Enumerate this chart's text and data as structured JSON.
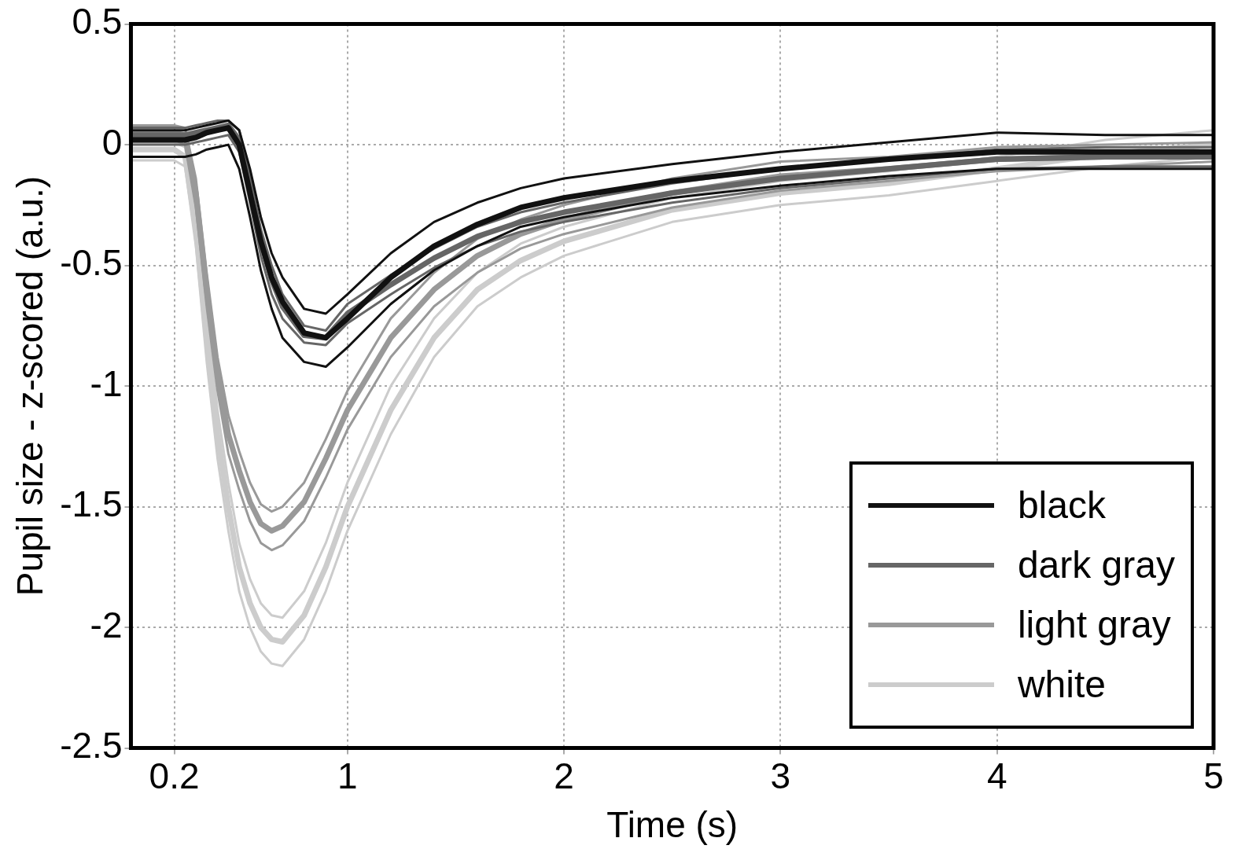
{
  "chart_data": {
    "type": "line",
    "xlabel": "Time (s)",
    "ylabel": "Pupil size - z-scored (a.u.)",
    "xlim": [
      0,
      5
    ],
    "xticks": [
      0.2,
      1,
      2,
      3,
      4,
      5
    ],
    "ylim": [
      -2.5,
      0.5
    ],
    "yticks": [
      -2.5,
      -2,
      -1.5,
      -1,
      -0.5,
      0,
      0.5
    ],
    "x": [
      0,
      0.2,
      0.25,
      0.3,
      0.35,
      0.4,
      0.45,
      0.5,
      0.55,
      0.6,
      0.65,
      0.7,
      0.8,
      0.9,
      1.0,
      1.2,
      1.4,
      1.6,
      1.8,
      2.0,
      2.5,
      3,
      3.5,
      4,
      4.5,
      5
    ],
    "grid": true,
    "legend": "bottom right",
    "line_style": "solid",
    "marker": "none",
    "series": [
      {
        "name": "black",
        "color": "#111111",
        "values": [
          0.02,
          0.02,
          0.02,
          0.03,
          0.05,
          0.06,
          0.07,
          0.0,
          -0.2,
          -0.4,
          -0.55,
          -0.65,
          -0.78,
          -0.8,
          -0.72,
          -0.55,
          -0.42,
          -0.33,
          -0.26,
          -0.22,
          -0.15,
          -0.1,
          -0.06,
          -0.03,
          -0.03,
          -0.03
        ]
      },
      {
        "color": "#111111",
        "values": [
          -0.05,
          -0.05,
          -0.05,
          -0.04,
          -0.02,
          -0.01,
          0.0,
          -0.1,
          -0.3,
          -0.52,
          -0.68,
          -0.8,
          -0.9,
          -0.92,
          -0.84,
          -0.66,
          -0.52,
          -0.42,
          -0.34,
          -0.3,
          -0.22,
          -0.17,
          -0.13,
          -0.1,
          -0.1,
          -0.1
        ]
      },
      {
        "color": "#111111",
        "values": [
          0.06,
          0.06,
          0.06,
          0.07,
          0.08,
          0.09,
          0.1,
          0.06,
          -0.1,
          -0.3,
          -0.45,
          -0.55,
          -0.68,
          -0.7,
          -0.62,
          -0.45,
          -0.32,
          -0.24,
          -0.18,
          -0.14,
          -0.08,
          -0.03,
          0.01,
          0.05,
          0.04,
          0.04
        ]
      },
      {
        "name": "dark gray",
        "color": "#666666",
        "values": [
          0.04,
          0.04,
          0.04,
          0.05,
          0.06,
          0.07,
          0.08,
          0.02,
          -0.18,
          -0.4,
          -0.56,
          -0.67,
          -0.79,
          -0.8,
          -0.7,
          -0.58,
          -0.47,
          -0.38,
          -0.32,
          -0.28,
          -0.2,
          -0.14,
          -0.1,
          -0.06,
          -0.05,
          -0.05
        ]
      },
      {
        "color": "#666666",
        "values": [
          0.0,
          0.0,
          0.0,
          0.01,
          0.02,
          0.03,
          0.04,
          -0.03,
          -0.24,
          -0.46,
          -0.62,
          -0.72,
          -0.82,
          -0.83,
          -0.74,
          -0.62,
          -0.51,
          -0.42,
          -0.36,
          -0.32,
          -0.24,
          -0.18,
          -0.14,
          -0.1,
          -0.09,
          -0.09
        ]
      },
      {
        "color": "#666666",
        "values": [
          0.07,
          0.07,
          0.07,
          0.08,
          0.09,
          0.1,
          0.1,
          0.06,
          -0.13,
          -0.35,
          -0.5,
          -0.62,
          -0.75,
          -0.77,
          -0.66,
          -0.54,
          -0.43,
          -0.34,
          -0.28,
          -0.24,
          -0.16,
          -0.1,
          -0.06,
          -0.02,
          -0.01,
          -0.01
        ]
      },
      {
        "name": "light gray",
        "color": "#999999",
        "values": [
          0.05,
          0.05,
          0.04,
          -0.2,
          -0.6,
          -0.95,
          -1.2,
          -1.35,
          -1.48,
          -1.57,
          -1.6,
          -1.58,
          -1.48,
          -1.3,
          -1.1,
          -0.8,
          -0.6,
          -0.46,
          -0.37,
          -0.31,
          -0.2,
          -0.13,
          -0.1,
          -0.06,
          -0.05,
          -0.03
        ]
      },
      {
        "color": "#999999",
        "values": [
          0.02,
          0.02,
          0.0,
          -0.26,
          -0.67,
          -1.02,
          -1.28,
          -1.43,
          -1.56,
          -1.65,
          -1.68,
          -1.66,
          -1.56,
          -1.38,
          -1.18,
          -0.88,
          -0.67,
          -0.53,
          -0.43,
          -0.37,
          -0.26,
          -0.19,
          -0.15,
          -0.11,
          -0.09,
          -0.07
        ]
      },
      {
        "color": "#999999",
        "values": [
          0.08,
          0.08,
          0.07,
          -0.14,
          -0.53,
          -0.88,
          -1.12,
          -1.27,
          -1.4,
          -1.49,
          -1.52,
          -1.5,
          -1.4,
          -1.22,
          -1.02,
          -0.72,
          -0.53,
          -0.39,
          -0.31,
          -0.25,
          -0.14,
          -0.07,
          -0.05,
          -0.01,
          0.0,
          0.01
        ]
      },
      {
        "name": "white",
        "color": "#cccccc",
        "values": [
          -0.02,
          -0.02,
          -0.05,
          -0.35,
          -0.8,
          -1.2,
          -1.5,
          -1.75,
          -1.9,
          -2.0,
          -2.05,
          -2.06,
          -1.95,
          -1.75,
          -1.5,
          -1.1,
          -0.8,
          -0.6,
          -0.48,
          -0.4,
          -0.27,
          -0.2,
          -0.16,
          -0.1,
          -0.04,
          0.0
        ]
      },
      {
        "color": "#cccccc",
        "values": [
          -0.065,
          -0.065,
          -0.09,
          -0.42,
          -0.9,
          -1.3,
          -1.6,
          -1.85,
          -2.0,
          -2.1,
          -2.15,
          -2.16,
          -2.05,
          -1.85,
          -1.6,
          -1.2,
          -0.88,
          -0.67,
          -0.55,
          -0.46,
          -0.32,
          -0.25,
          -0.21,
          -0.15,
          -0.09,
          -0.05
        ]
      },
      {
        "color": "#cccccc",
        "values": [
          0.01,
          0.01,
          -0.01,
          -0.28,
          -0.7,
          -1.1,
          -1.4,
          -1.65,
          -1.8,
          -1.9,
          -1.95,
          -1.96,
          -1.85,
          -1.65,
          -1.4,
          -1.0,
          -0.72,
          -0.53,
          -0.41,
          -0.34,
          -0.22,
          -0.15,
          -0.11,
          -0.05,
          0.02,
          0.06
        ]
      }
    ]
  }
}
